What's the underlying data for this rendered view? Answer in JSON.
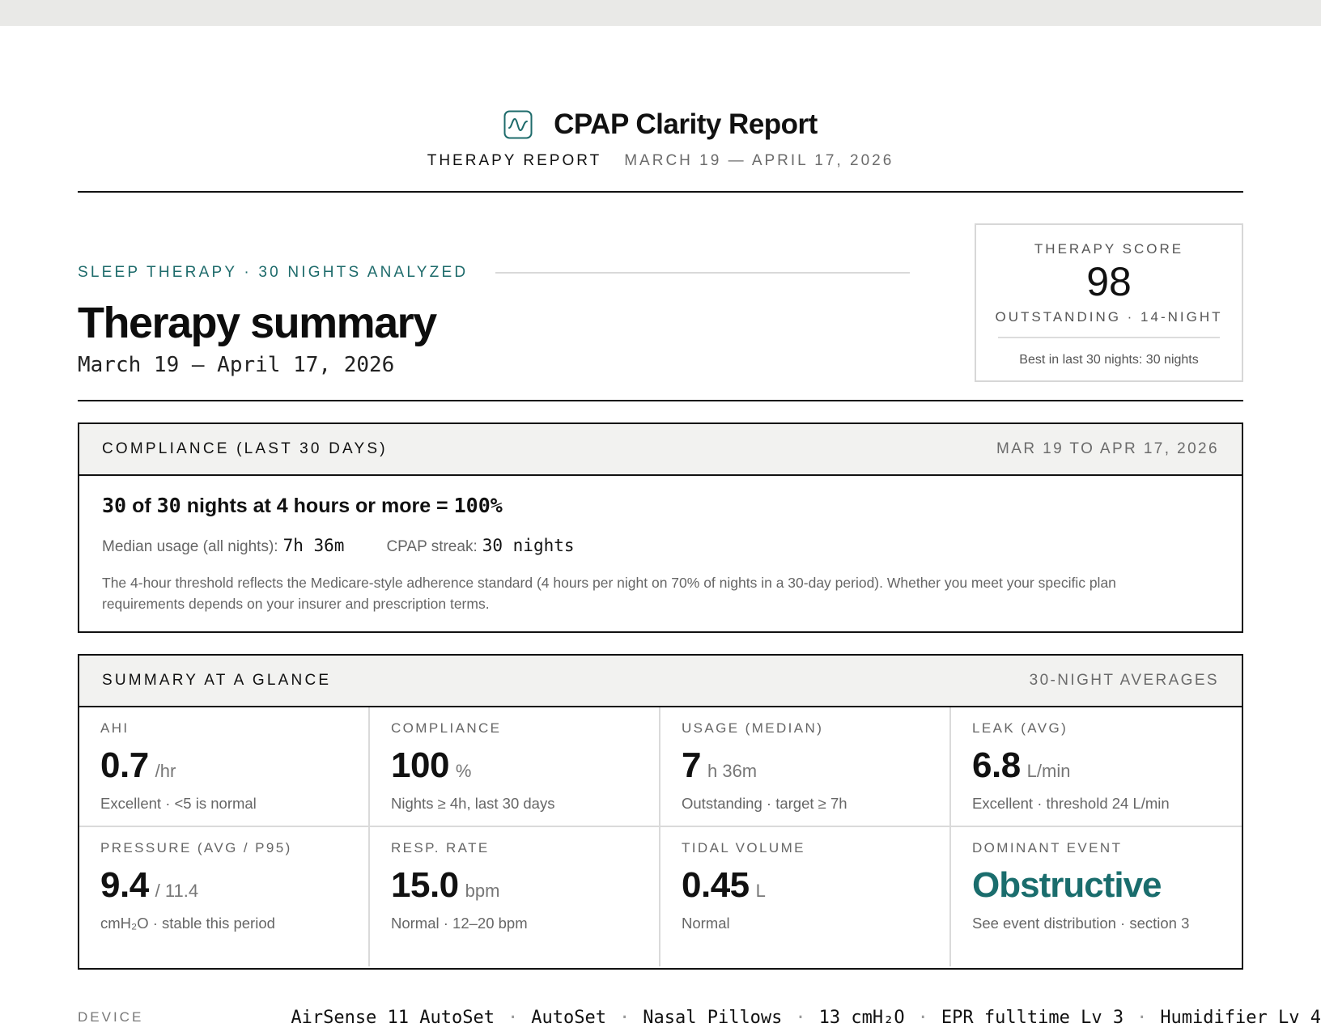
{
  "report": {
    "title": "CPAP Clarity Report",
    "kind": "THERAPY REPORT",
    "range": "MARCH 19 — APRIL 17, 2026",
    "accent_color": "#1e6b6b",
    "icon": "waveform-icon"
  },
  "hero": {
    "eyebrow": "SLEEP THERAPY · 30 NIGHTS ANALYZED",
    "title": "Therapy summary",
    "dates": "March 19 — April 17, 2026"
  },
  "score": {
    "label": "THERAPY SCORE",
    "value": "98",
    "rating": "OUTSTANDING · 14-NIGHT",
    "best": "Best in last 30 nights: 30 nights"
  },
  "compliance": {
    "title": "COMPLIANCE (LAST 30 DAYS)",
    "range": "MAR 19 TO APR 17, 2026",
    "nights_met": "30",
    "of_word": "of",
    "nights_total": "30",
    "headline_text": "nights at 4 hours or more =",
    "percent": "100%",
    "median_label": "Median usage (all nights):",
    "median_value": "7h 36m",
    "streak_label": "CPAP streak:",
    "streak_value": "30 nights",
    "note": "The 4-hour threshold reflects the Medicare-style adherence standard (4 hours per night on 70% of nights in a 30-day period). Whether you meet your specific plan requirements depends on your insurer and prescription terms."
  },
  "glance": {
    "title": "SUMMARY AT A GLANCE",
    "meta": "30-NIGHT AVERAGES",
    "metrics": [
      {
        "label": "AHI",
        "value": "0.7",
        "unit": "/hr",
        "note": "Excellent · <5 is normal"
      },
      {
        "label": "COMPLIANCE",
        "value": "100",
        "unit": "%",
        "note": "Nights ≥ 4h, last 30 days"
      },
      {
        "label": "USAGE (MEDIAN)",
        "value": "7",
        "unit": "h 36m",
        "note": "Outstanding · target ≥ 7h"
      },
      {
        "label": "LEAK (AVG)",
        "value": "6.8",
        "unit": "L/min",
        "note": "Excellent · threshold 24 L/min"
      },
      {
        "label": "PRESSURE (AVG / P95)",
        "value": "9.4",
        "unit": "/ 11.4",
        "note": "cmH₂O · stable this period"
      },
      {
        "label": "RESP. RATE",
        "value": "15.0",
        "unit": "bpm",
        "note": "Normal · 12–20 bpm"
      },
      {
        "label": "TIDAL VOLUME",
        "value": "0.45",
        "unit": "L",
        "note": "Normal"
      },
      {
        "label": "DOMINANT EVENT",
        "value": "Obstructive",
        "unit": "",
        "note": "See event distribution · section 3"
      }
    ]
  },
  "device": {
    "label": "DEVICE",
    "items": [
      "AirSense 11 AutoSet",
      "AutoSet",
      "Nasal Pillows",
      "13 cmH₂O",
      "EPR fulltime Lv 3",
      "Humidifier Lv 4"
    ],
    "separator": "·"
  }
}
